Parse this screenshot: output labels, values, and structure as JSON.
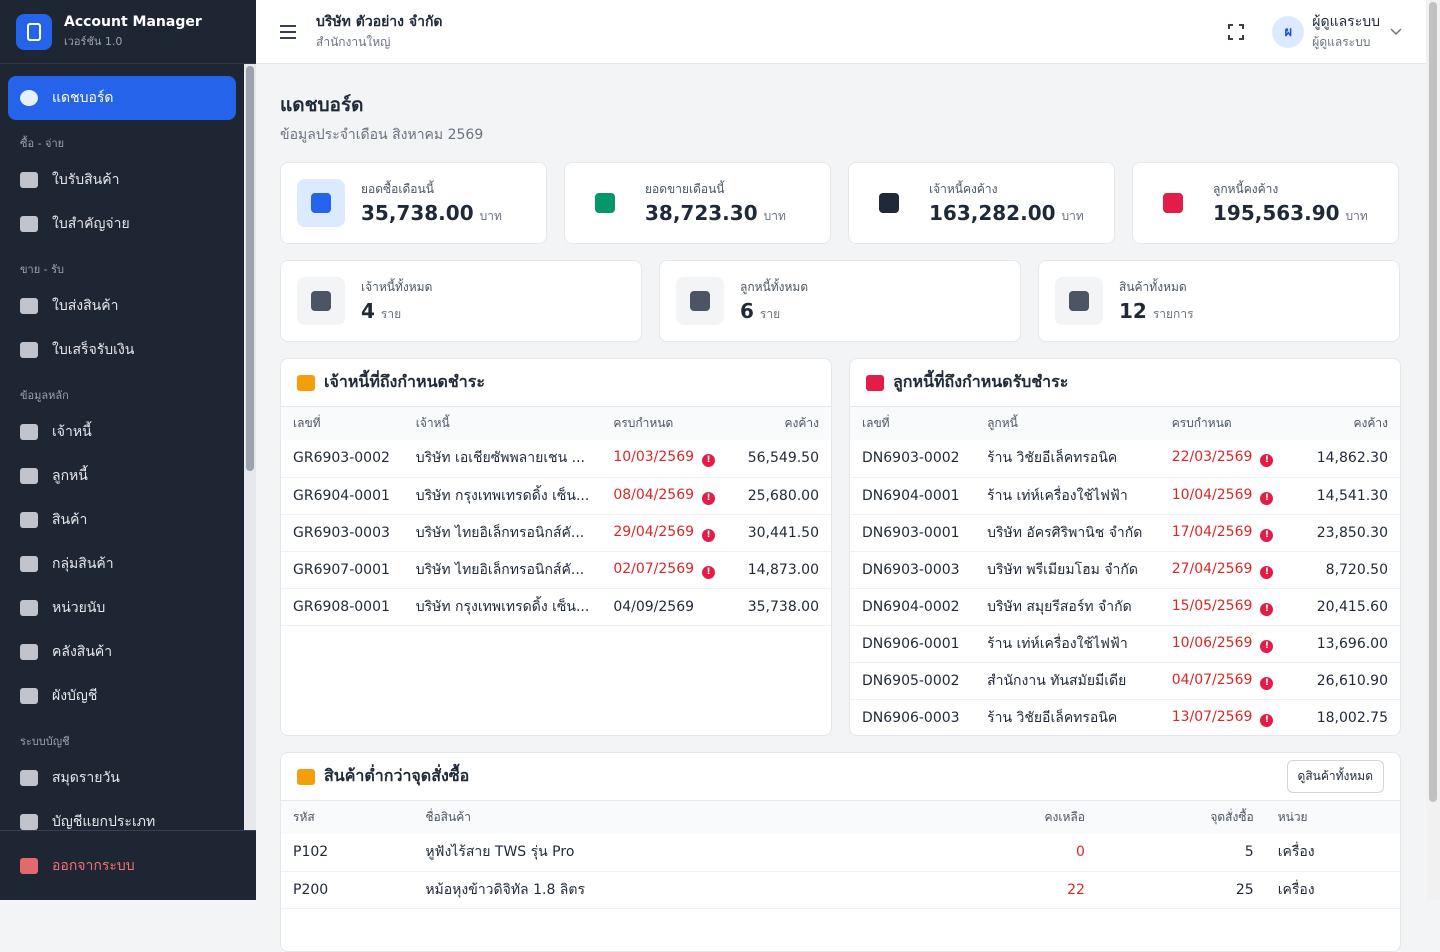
{
  "app": {
    "name": "Account Manager",
    "version": "เวอร์ชัน 1.0"
  },
  "sidebar": {
    "active": "แดชบอร์ด",
    "groups": [
      {
        "label": "ซื้อ - จ่าย",
        "items": [
          "ใบรับสินค้า",
          "ใบสำคัญจ่าย"
        ]
      },
      {
        "label": "ขาย - รับ",
        "items": [
          "ใบส่งสินค้า",
          "ใบเสร็จรับเงิน"
        ]
      },
      {
        "label": "ข้อมูลหลัก",
        "items": [
          "เจ้าหนี้",
          "ลูกหนี้",
          "สินค้า",
          "กลุ่มสินค้า",
          "หน่วยนับ",
          "คลังสินค้า",
          "ผังบัญชี"
        ]
      },
      {
        "label": "ระบบบัญชี",
        "items": [
          "สมุดรายวัน",
          "บัญชีแยกประเภท"
        ]
      }
    ],
    "logout": "ออกจากระบบ"
  },
  "header": {
    "company": "บริษัท ตัวอย่าง จำกัด",
    "branch": "สำนักงานใหญ่",
    "user_initial": "ผ",
    "user_name": "ผู้ดูแลระบบ",
    "user_role": "ผู้ดูแลระบบ"
  },
  "page": {
    "title": "แดชบอร์ด",
    "subtitle": "ข้อมูลประจำเดือน สิงหาคม 2569"
  },
  "stats": [
    {
      "label": "ยอดซื้อเดือนนี้",
      "value": "35,738.00",
      "unit": "บาท"
    },
    {
      "label": "ยอดขายเดือนนี้",
      "value": "38,723.30",
      "unit": "บาท"
    },
    {
      "label": "เจ้าหนี้คงค้าง",
      "value": "163,282.00",
      "unit": "บาท"
    },
    {
      "label": "ลูกหนี้คงค้าง",
      "value": "195,563.90",
      "unit": "บาท"
    }
  ],
  "counts": [
    {
      "label": "เจ้าหนี้ทั้งหมด",
      "value": "4",
      "unit": "ราย"
    },
    {
      "label": "ลูกหนี้ทั้งหมด",
      "value": "6",
      "unit": "ราย"
    },
    {
      "label": "สินค้าทั้งหมด",
      "value": "12",
      "unit": "รายการ"
    }
  ],
  "payables": {
    "title": "เจ้าหนี้ที่ถึงกำหนดชำระ",
    "columns": [
      "เลขที่",
      "เจ้าหนี้",
      "ครบกำหนด",
      "คงค้าง"
    ],
    "rows": [
      {
        "no": "GR6903-0002",
        "party": "บริษัท เอเชียซัพพลายเชน ...",
        "due": "10/03/2569",
        "balance": "56,549.50",
        "overdue": true
      },
      {
        "no": "GR6904-0001",
        "party": "บริษัท กรุงเทพเทรดดิ้ง เซ็น...",
        "due": "08/04/2569",
        "balance": "25,680.00",
        "overdue": true
      },
      {
        "no": "GR6903-0003",
        "party": "บริษัท ไทยอิเล็กทรอนิกส์คั...",
        "due": "29/04/2569",
        "balance": "30,441.50",
        "overdue": true
      },
      {
        "no": "GR6907-0001",
        "party": "บริษัท ไทยอิเล็กทรอนิกส์คั...",
        "due": "02/07/2569",
        "balance": "14,873.00",
        "overdue": true
      },
      {
        "no": "GR6908-0001",
        "party": "บริษัท กรุงเทพเทรดดิ้ง เซ็น...",
        "due": "04/09/2569",
        "balance": "35,738.00",
        "overdue": false
      }
    ]
  },
  "receivables": {
    "title": "ลูกหนี้ที่ถึงกำหนดรับชำระ",
    "columns": [
      "เลขที่",
      "ลูกหนี้",
      "ครบกำหนด",
      "คงค้าง"
    ],
    "rows": [
      {
        "no": "DN6903-0002",
        "party": "ร้าน วิชัยอีเล็คทรอนิค",
        "due": "22/03/2569",
        "balance": "14,862.30",
        "overdue": true
      },
      {
        "no": "DN6904-0001",
        "party": "ร้าน เท่ห์เครื่องใช้ไฟฟ้า",
        "due": "10/04/2569",
        "balance": "14,541.30",
        "overdue": true
      },
      {
        "no": "DN6903-0001",
        "party": "บริษัท อัครศิริพานิช จำกัด",
        "due": "17/04/2569",
        "balance": "23,850.30",
        "overdue": true
      },
      {
        "no": "DN6903-0003",
        "party": "บริษัท พรีเมียมโฮม จำกัด",
        "due": "27/04/2569",
        "balance": "8,720.50",
        "overdue": true
      },
      {
        "no": "DN6904-0002",
        "party": "บริษัท สมุยรีสอร์ท จำกัด",
        "due": "15/05/2569",
        "balance": "20,415.60",
        "overdue": true
      },
      {
        "no": "DN6906-0001",
        "party": "ร้าน เท่ห์เครื่องใช้ไฟฟ้า",
        "due": "10/06/2569",
        "balance": "13,696.00",
        "overdue": true
      },
      {
        "no": "DN6905-0002",
        "party": "สำนักงาน ทันสมัยมีเดีย",
        "due": "04/07/2569",
        "balance": "26,610.90",
        "overdue": true
      },
      {
        "no": "DN6906-0003",
        "party": "ร้าน วิชัยอีเล็คทรอนิค",
        "due": "13/07/2569",
        "balance": "18,002.75",
        "overdue": true
      }
    ]
  },
  "low_stock": {
    "title": "สินค้าต่ำกว่าจุดสั่งซื้อ",
    "button": "ดูสินค้าทั้งหมด",
    "columns": [
      "รหัส",
      "ชื่อสินค้า",
      "คงเหลือ",
      "จุดสั่งซื้อ",
      "หน่วย"
    ],
    "rows": [
      {
        "code": "P102",
        "name": "หูฟังไร้สาย TWS รุ่น Pro",
        "qty": "0",
        "reorder": "5",
        "unit": "เครื่อง"
      },
      {
        "code": "P200",
        "name": "หม้อหุงข้าวดิจิทัล 1.8 ลิตร",
        "qty": "22",
        "reorder": "25",
        "unit": "เครื่อง"
      }
    ]
  }
}
